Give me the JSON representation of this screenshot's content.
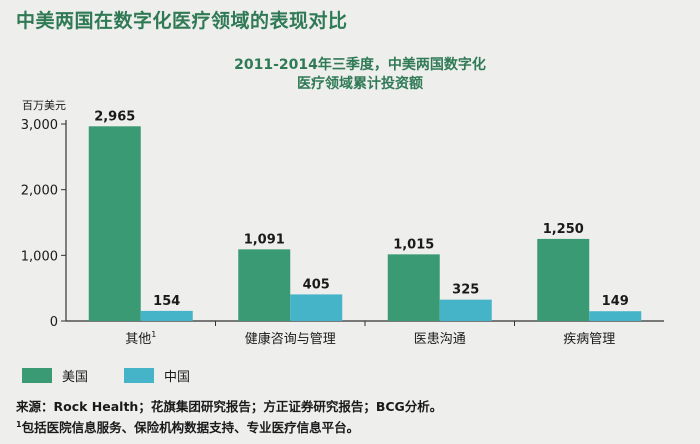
{
  "page_title": "中美两国在数字化医疗领域的表现对比",
  "chart_title_line1": "2011-2014年三季度，中美两国数字化",
  "chart_title_line2": "医疗领域累计投资额",
  "unit_label": "百万美元",
  "colors": {
    "us": "#3a9a73",
    "cn": "#45b4c9"
  },
  "legend": [
    {
      "label": "美国",
      "color": "#3a9a73"
    },
    {
      "label": "中国",
      "color": "#45b4c9"
    }
  ],
  "source_line1": "来源：Rock Health；花旗集团研究报告；方正证券研究报告；BCG分析。",
  "source_line2_sup": "1",
  "source_line2": "包括医院信息服务、保险机构数据支持、专业医疗信息平台。",
  "chart_data": {
    "type": "bar",
    "categories": [
      "其他",
      "健康咨询与管理",
      "医患沟通",
      "疾病管理"
    ],
    "category_superscripts": [
      "1",
      "",
      "",
      ""
    ],
    "series": [
      {
        "name": "美国",
        "values": [
          2965,
          1091,
          1015,
          1250
        ],
        "labels": [
          "2,965",
          "1,091",
          "1,015",
          "1,250"
        ]
      },
      {
        "name": "中国",
        "values": [
          154,
          405,
          325,
          149
        ],
        "labels": [
          "154",
          "405",
          "325",
          "149"
        ]
      }
    ],
    "y_ticks": [
      "0",
      "1,000",
      "2,000",
      "3,000"
    ],
    "y_tick_values": [
      0,
      1000,
      2000,
      3000
    ],
    "ylim": [
      0,
      3000
    ],
    "ylabel": "百万美元",
    "grid": false,
    "legend_position": "bottom-left"
  }
}
